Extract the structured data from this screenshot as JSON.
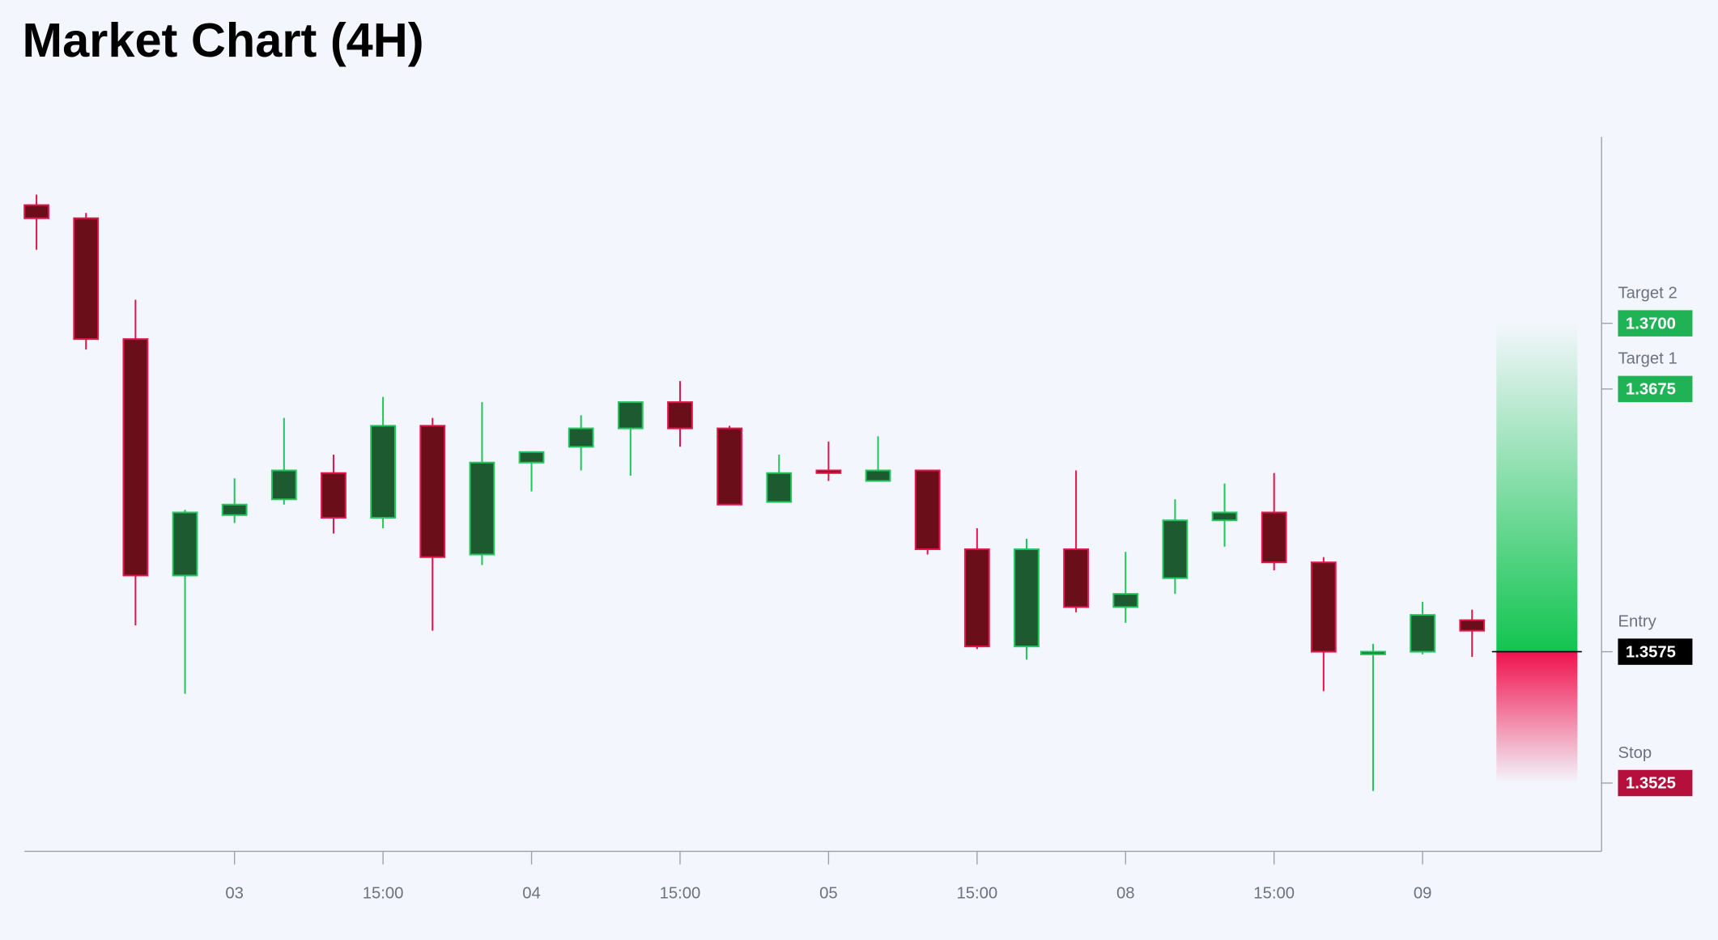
{
  "chart_data": {
    "type": "candlestick",
    "title": "Market Chart (4H)",
    "categories": [
      null,
      null,
      null,
      null,
      "03",
      null,
      null,
      "15:00",
      null,
      null,
      "04",
      null,
      null,
      "15:00",
      null,
      null,
      "05",
      null,
      null,
      "15:00",
      null,
      null,
      "08",
      null,
      null,
      "15:00",
      null,
      null,
      "09",
      null
    ],
    "open": [
      1.3745,
      1.374,
      1.3694,
      1.3604,
      1.3627,
      1.3633,
      1.3643,
      1.3626,
      1.3661,
      1.3612,
      1.3647,
      1.3653,
      1.366,
      1.367,
      1.366,
      1.3632,
      1.3644,
      1.364,
      1.3644,
      1.3614,
      1.3577,
      1.3614,
      1.3592,
      1.3603,
      1.3625,
      1.3628,
      1.3609,
      1.3574,
      1.3575,
      1.3587
    ],
    "high": [
      1.3749,
      1.3742,
      1.3709,
      1.3629,
      1.3641,
      1.3664,
      1.365,
      1.3672,
      1.3664,
      1.367,
      1.3651,
      1.3665,
      1.367,
      1.3678,
      1.3661,
      1.365,
      1.3655,
      1.3657,
      1.3644,
      1.3622,
      1.3618,
      1.3644,
      1.3613,
      1.3633,
      1.3639,
      1.3643,
      1.3611,
      1.3578,
      1.3594,
      1.3591
    ],
    "low": [
      1.3728,
      1.369,
      1.3585,
      1.3559,
      1.3624,
      1.3631,
      1.362,
      1.3622,
      1.3583,
      1.3608,
      1.3636,
      1.3644,
      1.3642,
      1.3653,
      1.3631,
      1.3632,
      1.364,
      1.364,
      1.3612,
      1.3576,
      1.3572,
      1.359,
      1.3586,
      1.3597,
      1.3615,
      1.3606,
      1.356,
      1.3522,
      1.3574,
      1.3573
    ],
    "close": [
      1.374,
      1.3694,
      1.3604,
      1.3628,
      1.3631,
      1.3644,
      1.3626,
      1.3661,
      1.3611,
      1.3647,
      1.3651,
      1.366,
      1.367,
      1.366,
      1.3631,
      1.3643,
      1.3643,
      1.3644,
      1.3614,
      1.3577,
      1.3614,
      1.3592,
      1.3597,
      1.3625,
      1.3628,
      1.3609,
      1.3575,
      1.3575,
      1.3589,
      1.3583
    ],
    "up_color": "#1d5a2f",
    "up_border": "#22c55e",
    "down_color": "#6a0f19",
    "down_border": "#e3164c",
    "ylim": [
      1.3499,
      1.3771
    ],
    "levels": [
      {
        "name": "Target 2",
        "value": 1.37,
        "value_label": "1.3700",
        "color": "#1fb355"
      },
      {
        "name": "Target 1",
        "value": 1.3675,
        "value_label": "1.3675",
        "color": "#1fb355"
      },
      {
        "name": "Entry",
        "value": 1.3575,
        "value_label": "1.3575",
        "color": "#000000"
      },
      {
        "name": "Stop",
        "value": 1.3525,
        "value_label": "1.3525",
        "color": "#b5103c"
      }
    ]
  }
}
